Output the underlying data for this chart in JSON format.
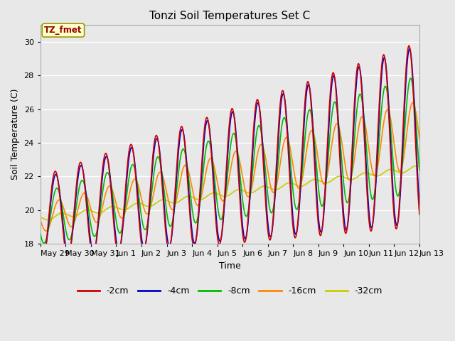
{
  "title": "Tonzi Soil Temperatures Set C",
  "xlabel": "Time",
  "ylabel": "Soil Temperature (C)",
  "ylim": [
    18,
    31
  ],
  "colors": {
    "-2cm": "#cc0000",
    "-4cm": "#0000cc",
    "-8cm": "#00bb00",
    "-16cm": "#ff8800",
    "-32cm": "#cccc00"
  },
  "legend_labels": [
    "-2cm",
    "-4cm",
    "-8cm",
    "-16cm",
    "-32cm"
  ],
  "annotation_text": "TZ_fmet",
  "annotation_bg": "#ffffcc",
  "annotation_fg": "#990000",
  "plot_bg": "#e8e8e8",
  "fig_bg": "#e8e8e8",
  "grid_color": "#ffffff",
  "tick_labels": [
    "May 29",
    "May 30",
    "May 31",
    "Jun 1",
    "Jun 2",
    "Jun 3",
    "Jun 4",
    "Jun 5",
    "Jun 6",
    "Jun 7",
    "Jun 8",
    "Jun 9",
    "Jun 10",
    "Jun 11",
    "Jun 12",
    "Jun 13"
  ],
  "linewidth": 1.2
}
